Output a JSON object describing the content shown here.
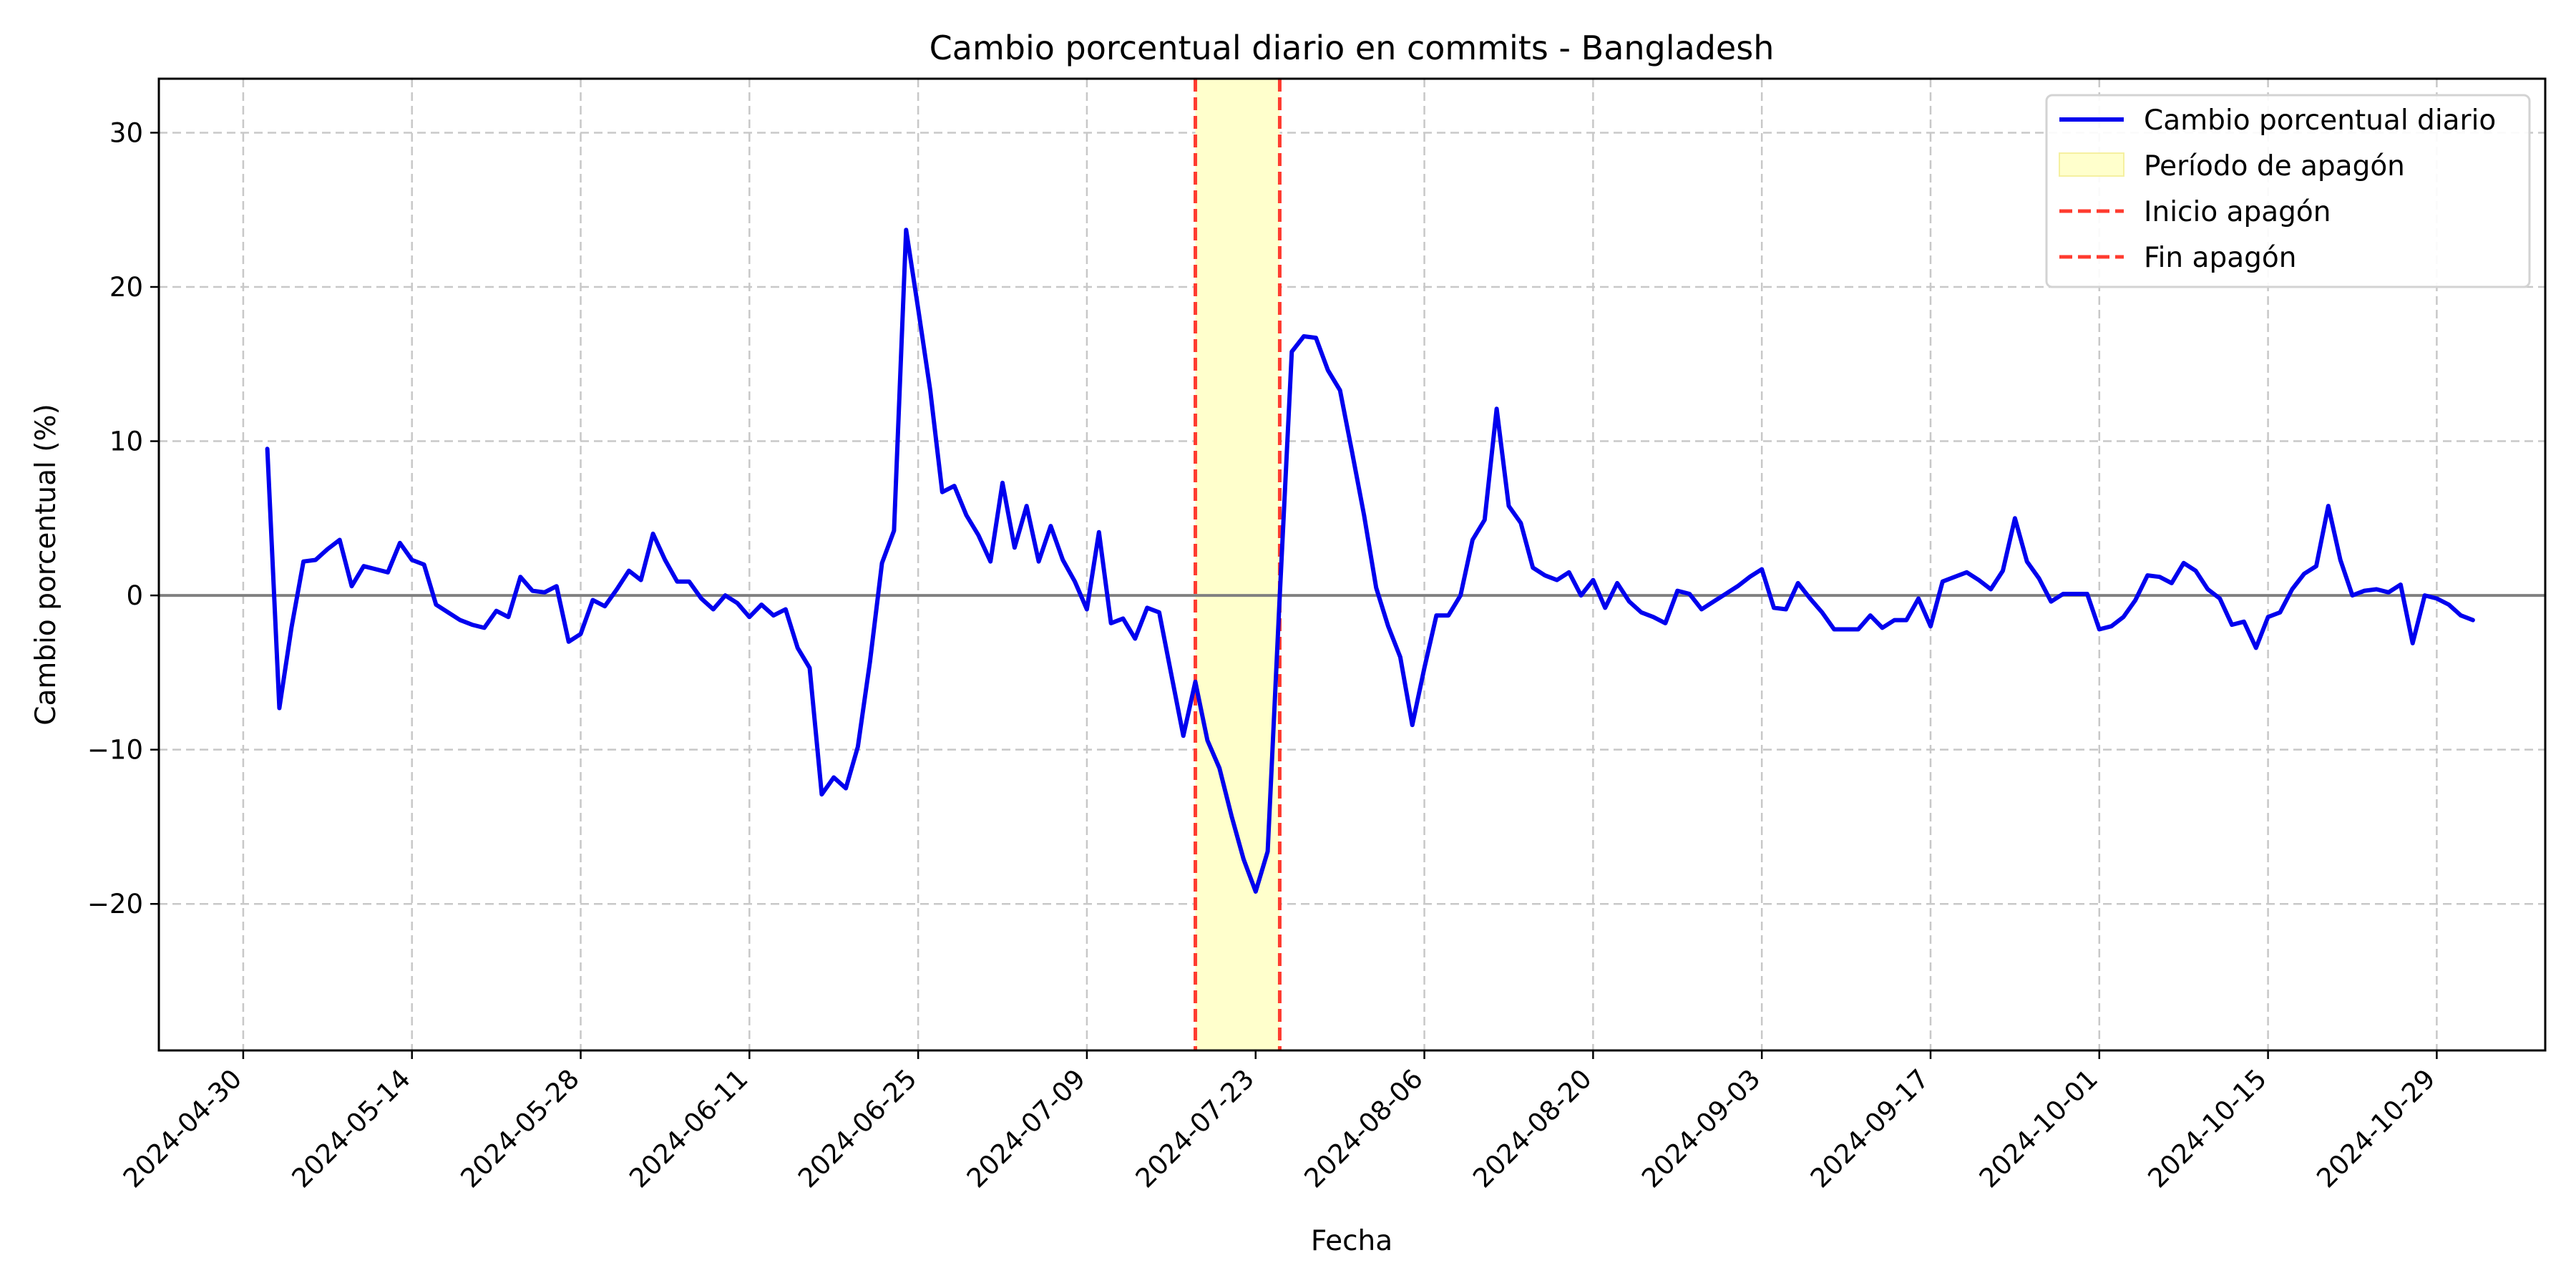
{
  "chart_data": {
    "type": "line",
    "title": "Cambio porcentual diario en commits - Bangladesh",
    "xlabel": "Fecha",
    "ylabel": "Cambio porcentual (%)",
    "xlim": [
      "2024-04-23",
      "2024-11-07"
    ],
    "ylim": [
      -29.5,
      33.5
    ],
    "x_ticks": [
      "2024-04-30",
      "2024-05-14",
      "2024-05-28",
      "2024-06-11",
      "2024-06-25",
      "2024-07-09",
      "2024-07-23",
      "2024-08-06",
      "2024-08-20",
      "2024-09-03",
      "2024-09-17",
      "2024-10-01",
      "2024-10-15",
      "2024-10-29"
    ],
    "y_ticks": [
      -20,
      -10,
      0,
      10,
      20,
      30
    ],
    "y_tick_labels": [
      "−20",
      "−10",
      "0",
      "10",
      "20",
      "30"
    ],
    "grid": true,
    "legend_position": "top-right",
    "reference_line_y": 0,
    "shaded_period": {
      "name": "Período de apagón",
      "start": "2024-07-18",
      "end": "2024-07-25",
      "color": "#ffffcc"
    },
    "vertical_lines": [
      {
        "name": "Inicio apagón",
        "x": "2024-07-18",
        "color": "#ff3b2f"
      },
      {
        "name": "Fin apagón",
        "x": "2024-07-25",
        "color": "#ff3b2f"
      }
    ],
    "series": [
      {
        "name": "Cambio porcentual diario",
        "color": "#0000ee",
        "start_date": "2024-05-02",
        "values": [
          9.5,
          -7.3,
          -2.1,
          2.2,
          2.3,
          3.0,
          3.6,
          0.6,
          1.9,
          1.7,
          1.5,
          3.4,
          2.3,
          2.0,
          -0.6,
          -1.1,
          -1.6,
          -1.9,
          -2.1,
          -1.0,
          -1.4,
          1.2,
          0.3,
          0.2,
          0.6,
          -3.0,
          -2.5,
          -0.3,
          -0.7,
          0.4,
          1.6,
          1.0,
          4.0,
          2.3,
          0.9,
          0.9,
          -0.2,
          -0.9,
          0.0,
          -0.5,
          -1.4,
          -0.6,
          -1.3,
          -0.9,
          -3.4,
          -4.7,
          -12.9,
          -11.8,
          -12.5,
          -9.8,
          -4.3,
          2.1,
          4.2,
          23.7,
          18.6,
          13.3,
          6.7,
          7.1,
          5.2,
          3.9,
          2.2,
          7.3,
          3.1,
          5.8,
          2.2,
          4.5,
          2.3,
          0.9,
          -0.9,
          4.1,
          -1.8,
          -1.5,
          -2.8,
          -0.8,
          -1.1,
          -5.1,
          -9.1,
          -5.6,
          -9.4,
          -11.2,
          -14.3,
          -17.1,
          -19.2,
          -16.6,
          -0.1,
          15.8,
          16.8,
          16.7,
          14.6,
          13.3,
          9.3,
          5.2,
          0.5,
          -2.0,
          -4.0,
          -8.4,
          -4.7,
          -1.3,
          -1.3,
          0.0,
          3.6,
          4.9,
          12.1,
          5.8,
          4.7,
          1.8,
          1.3,
          1.0,
          1.5,
          0.0,
          1.0,
          -0.8,
          0.8,
          -0.4,
          -1.1,
          -1.4,
          -1.8,
          0.3,
          0.1,
          -0.9,
          -0.4,
          0.1,
          0.6,
          1.2,
          1.7,
          -0.8,
          -0.9,
          0.8,
          -0.2,
          -1.1,
          -2.2,
          -2.2,
          -2.2,
          -1.3,
          -2.1,
          -1.6,
          -1.6,
          -0.2,
          -2.0,
          0.9,
          1.2,
          1.5,
          1.0,
          0.4,
          1.6,
          5.0,
          2.2,
          1.1,
          -0.4,
          0.1,
          0.1,
          0.1,
          -2.2,
          -2.0,
          -1.4,
          -0.3,
          1.3,
          1.2,
          0.8,
          2.1,
          1.6,
          0.4,
          -0.2,
          -1.9,
          -1.7,
          -3.4,
          -1.4,
          -1.1,
          0.4,
          1.4,
          1.9,
          5.8,
          2.3,
          0.0,
          0.3,
          0.4,
          0.2,
          0.7,
          -3.1,
          0.0,
          -0.2,
          -0.6,
          -1.3,
          -1.6
        ]
      }
    ]
  }
}
